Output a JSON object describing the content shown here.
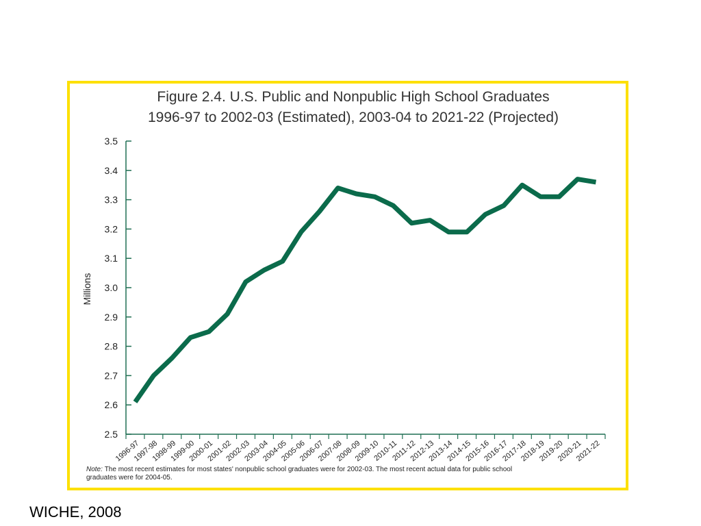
{
  "chart_data": {
    "type": "line",
    "title": "Figure 2.4.  U.S. Public and Nonpublic High School Graduates",
    "subtitle": "1996-97 to 2002-03 (Estimated), 2003-04 to 2021-22 (Projected)",
    "ylabel": "Millions",
    "xlabel": "",
    "ylim": [
      2.5,
      3.5
    ],
    "yticks": [
      "2.5",
      "2.6",
      "2.7",
      "2.8",
      "2.9",
      "3.0",
      "3.1",
      "3.2",
      "3.3",
      "3.4",
      "3.5"
    ],
    "categories": [
      "1996-97",
      "1997-98",
      "1998-99",
      "1999-00",
      "2000-01",
      "2001-02",
      "2002-03",
      "2003-04",
      "2004-05",
      "2005-06",
      "2006-07",
      "2007-08",
      "2008-09",
      "2009-10",
      "2010-11",
      "2011-12",
      "2012-13",
      "2013-14",
      "2014-15",
      "2015-16",
      "2016-17",
      "2017-18",
      "2018-19",
      "2019-20",
      "2020-21",
      "2021-22"
    ],
    "series": [
      {
        "values": [
          2.61,
          2.7,
          2.76,
          2.83,
          2.85,
          2.91,
          3.02,
          3.06,
          3.09,
          3.19,
          3.26,
          3.34,
          3.32,
          3.31,
          3.28,
          3.22,
          3.23,
          3.19,
          3.19,
          3.25,
          3.28,
          3.35,
          3.31,
          3.31,
          3.37,
          3.36
        ],
        "color": "#0b6b4b"
      }
    ],
    "note_label": "Note:",
    "note_text": "The most recent estimates for most states' nonpublic school graduates were for 2002-03. The most recent actual data for public school graduates were for 2004-05.",
    "grid": false,
    "legend": "none"
  },
  "frame_color": "#fde000",
  "source": "WICHE, 2008"
}
